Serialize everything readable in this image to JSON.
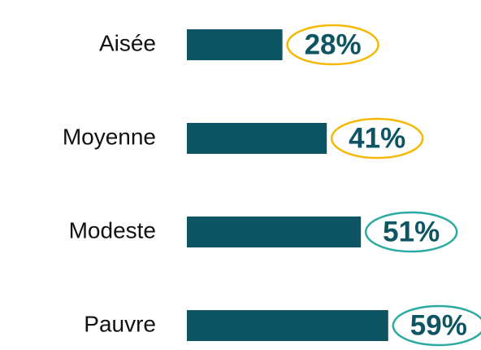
{
  "chart_data": {
    "type": "bar",
    "orientation": "horizontal",
    "categories": [
      "Aisée",
      "Moyenne",
      "Modeste",
      "Pauvre"
    ],
    "values": [
      28,
      41,
      51,
      59
    ],
    "value_labels": [
      "28%",
      "41%",
      "51%",
      "59%"
    ],
    "color": "#0e5563",
    "highlight_colors": [
      "#f5b800",
      "#f5b800",
      "#2aaaa2",
      "#2aaaa2"
    ]
  }
}
